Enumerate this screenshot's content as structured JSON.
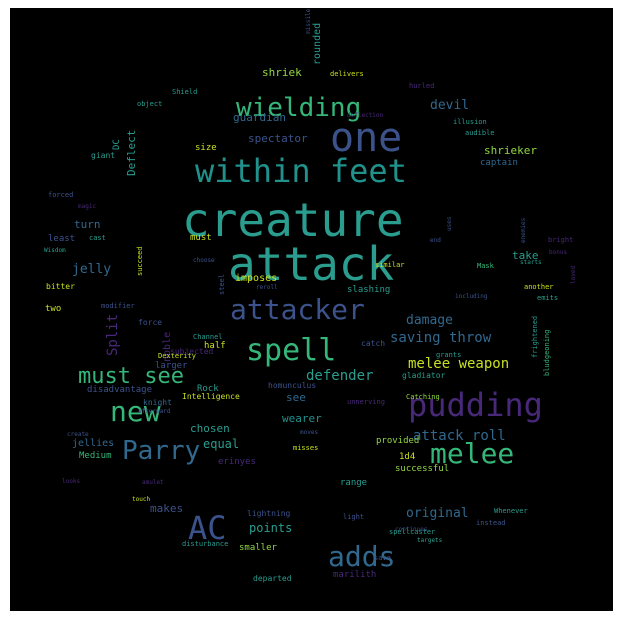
{
  "palette": {
    "background": "#000000",
    "teal": "#2a9d8f",
    "green": "#35b779",
    "slate": "#3b528b",
    "purple": "#482878",
    "deep_purple": "#440154",
    "blue": "#31688e",
    "lime": "#90d743",
    "yellow": "#c8e020",
    "cyan": "#21918c"
  },
  "words": [
    {
      "text": "creature",
      "color": "#2a9d8f"
    },
    {
      "text": "attack",
      "color": "#2a9d8f"
    },
    {
      "text": "one",
      "color": "#3b528b"
    },
    {
      "text": "within feet",
      "color": "#21918c"
    },
    {
      "text": "wielding",
      "color": "#35b779"
    },
    {
      "text": "attacker",
      "color": "#3b528b"
    },
    {
      "text": "spell",
      "color": "#35b779"
    },
    {
      "text": "pudding",
      "color": "#482878"
    },
    {
      "text": "melee",
      "color": "#35b779"
    },
    {
      "text": "must see",
      "color": "#35b779"
    },
    {
      "text": "new",
      "color": "#35b779"
    },
    {
      "text": "Parry",
      "color": "#31688e"
    },
    {
      "text": "AC",
      "color": "#3b528b"
    },
    {
      "text": "adds",
      "color": "#31688e"
    },
    {
      "text": "melee weapon",
      "color": "#c8e020"
    },
    {
      "text": "saving throw",
      "color": "#31688e"
    },
    {
      "text": "attack roll",
      "color": "#31688e"
    },
    {
      "text": "defender",
      "color": "#2a9d8f"
    },
    {
      "text": "damage",
      "color": "#31688e"
    },
    {
      "text": "devil",
      "color": "#31688e"
    },
    {
      "text": "jelly",
      "color": "#31688e"
    },
    {
      "text": "shriek",
      "color": "#90d743"
    },
    {
      "text": "guardian",
      "color": "#31688e"
    },
    {
      "text": "spectator",
      "color": "#3b528b"
    },
    {
      "text": "shrieker",
      "color": "#90d743"
    },
    {
      "text": "captain",
      "color": "#31688e"
    },
    {
      "text": "Split",
      "color": "#482878"
    },
    {
      "text": "turn",
      "color": "#31688e"
    },
    {
      "text": "wearer",
      "color": "#21918c"
    },
    {
      "text": "chosen",
      "color": "#2a9d8f"
    },
    {
      "text": "see",
      "color": "#31688e"
    },
    {
      "text": "equal",
      "color": "#2a9d8f"
    },
    {
      "text": "original",
      "color": "#31688e"
    },
    {
      "text": "points",
      "color": "#2a9d8f"
    },
    {
      "text": "makes",
      "color": "#3b528b"
    },
    {
      "text": "rounded",
      "color": "#2a9d8f"
    },
    {
      "text": "Deflect",
      "color": "#2a9d8f"
    },
    {
      "text": "DC",
      "color": "#2a9d8f"
    },
    {
      "text": "take",
      "color": "#2a9d8f"
    },
    {
      "text": "provided",
      "color": "#90d743"
    },
    {
      "text": "successful",
      "color": "#90d743"
    },
    {
      "text": "1d4",
      "color": "#c8e020"
    },
    {
      "text": "range",
      "color": "#2a9d8f"
    },
    {
      "text": "erinyes",
      "color": "#482878"
    },
    {
      "text": "jellies",
      "color": "#31688e"
    },
    {
      "text": "knight",
      "color": "#31688e"
    },
    {
      "text": "homunculus",
      "color": "#3b528b"
    },
    {
      "text": "gladiator",
      "color": "#2a9d8f"
    },
    {
      "text": "imposes",
      "color": "#c8e020"
    },
    {
      "text": "slashing",
      "color": "#2a9d8f"
    },
    {
      "text": "smaller",
      "color": "#90d743"
    },
    {
      "text": "lightning",
      "color": "#3b528b"
    },
    {
      "text": "marilith",
      "color": "#482878"
    },
    {
      "text": "departed",
      "color": "#2a9d8f"
    },
    {
      "text": "Medium",
      "color": "#35b779"
    },
    {
      "text": "half",
      "color": "#c8e020"
    },
    {
      "text": "two",
      "color": "#c8e020"
    },
    {
      "text": "least",
      "color": "#3b528b"
    },
    {
      "text": "size",
      "color": "#c8e020"
    },
    {
      "text": "giant",
      "color": "#2a9d8f"
    },
    {
      "text": "must",
      "color": "#c8e020"
    },
    {
      "text": "force",
      "color": "#3b528b"
    },
    {
      "text": "larger",
      "color": "#3b528b"
    },
    {
      "text": "noble",
      "color": "#482878"
    },
    {
      "text": "Rock",
      "color": "#2a9d8f"
    },
    {
      "text": "disadvantage",
      "color": "#3b528b"
    },
    {
      "text": "Intelligence",
      "color": "#c8e020"
    },
    {
      "text": "Dexterity",
      "color": "#c8e020"
    },
    {
      "text": "subjected",
      "color": "#482878"
    },
    {
      "text": "modifier",
      "color": "#3b528b"
    },
    {
      "text": "catch",
      "color": "#3b528b"
    },
    {
      "text": "grants",
      "color": "#2a9d8f"
    },
    {
      "text": "Catching",
      "color": "#90d743"
    },
    {
      "text": "unnerving",
      "color": "#482878"
    },
    {
      "text": "misses",
      "color": "#c8e020"
    },
    {
      "text": "moves",
      "color": "#3b528b"
    },
    {
      "text": "light",
      "color": "#3b528b"
    },
    {
      "text": "spellcaster",
      "color": "#2a9d8f"
    },
    {
      "text": "targets",
      "color": "#2a9d8f"
    },
    {
      "text": "Whenever",
      "color": "#2a9d8f"
    },
    {
      "text": "instead",
      "color": "#3b528b"
    },
    {
      "text": "frightened",
      "color": "#2a9d8f"
    },
    {
      "text": "bludgeoning",
      "color": "#35b779"
    },
    {
      "text": "emits",
      "color": "#2a9d8f"
    },
    {
      "text": "loved",
      "color": "#482878"
    },
    {
      "text": "another",
      "color": "#c8e020"
    },
    {
      "text": "starts",
      "color": "#2a9d8f"
    },
    {
      "text": "Mask",
      "color": "#35b779"
    },
    {
      "text": "including",
      "color": "#3b528b"
    },
    {
      "text": "similar",
      "color": "#c8e020"
    },
    {
      "text": "end",
      "color": "#3b528b"
    },
    {
      "text": "uses",
      "color": "#3b528b"
    },
    {
      "text": "enemies",
      "color": "#3b528b"
    },
    {
      "text": "bright",
      "color": "#482878"
    },
    {
      "text": "bonus",
      "color": "#482878"
    },
    {
      "text": "Shield",
      "color": "#2a9d8f"
    },
    {
      "text": "object",
      "color": "#2a9d8f"
    },
    {
      "text": "delivers",
      "color": "#c8e020"
    },
    {
      "text": "missile",
      "color": "#3b528b"
    },
    {
      "text": "hurled",
      "color": "#482878"
    },
    {
      "text": "deflection",
      "color": "#482878"
    },
    {
      "text": "illusion",
      "color": "#2a9d8f"
    },
    {
      "text": "audible",
      "color": "#2a9d8f"
    },
    {
      "text": "forced",
      "color": "#3b528b"
    },
    {
      "text": "magic",
      "color": "#482878"
    },
    {
      "text": "cast",
      "color": "#2a9d8f"
    },
    {
      "text": "Wisdom",
      "color": "#2a9d8f"
    },
    {
      "text": "bitter",
      "color": "#c8e020"
    },
    {
      "text": "succeed",
      "color": "#c8e020"
    },
    {
      "text": "choose",
      "color": "#3b528b"
    },
    {
      "text": "reroll",
      "color": "#3b528b"
    },
    {
      "text": "steel",
      "color": "#3b528b"
    },
    {
      "text": "Channel",
      "color": "#2a9d8f"
    },
    {
      "text": "afterward",
      "color": "#3b528b"
    },
    {
      "text": "create",
      "color": "#3b528b"
    },
    {
      "text": "looks",
      "color": "#482878"
    },
    {
      "text": "amulet",
      "color": "#482878"
    },
    {
      "text": "touch",
      "color": "#c8e020"
    },
    {
      "text": "disturbance",
      "color": "#2a9d8f"
    },
    {
      "text": "continues",
      "color": "#3b528b"
    },
    {
      "text": "save",
      "color": "#3b528b"
    }
  ]
}
